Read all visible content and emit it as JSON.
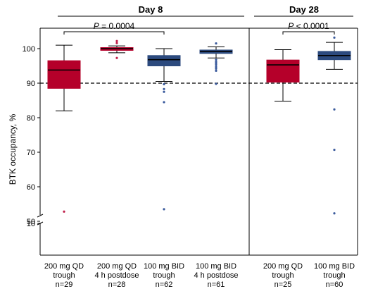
{
  "chart_data": {
    "type": "box",
    "ylabel": "BTK occupancy, %",
    "yticks": [
      10,
      50,
      60,
      70,
      80,
      90,
      100
    ],
    "reference_line": 90,
    "colors": {
      "qd": "#b5002a",
      "bid": "#2c4a7e",
      "outlier_qd": "#c0204a",
      "outlier_bid": "#3a5a9c"
    },
    "panels": [
      {
        "label": "Day 8",
        "comparison": {
          "prefix": "P",
          "text": " = 0.0004"
        }
      },
      {
        "label": "Day 28",
        "comparison": {
          "prefix": "P",
          "text": " < 0.0001"
        }
      }
    ],
    "groups": [
      {
        "line1": "200 mg QD",
        "line2": "trough",
        "line3": "n=29",
        "regimen": "qd",
        "whisker_low": 82,
        "q1": 88.5,
        "median": 93.8,
        "q3": 96.5,
        "whisker_high": 101,
        "outliers": [
          52.8
        ]
      },
      {
        "line1": "200 mg QD",
        "line2": "4 h postdose",
        "line3": "n=28",
        "regimen": "qd",
        "whisker_low": 98.8,
        "q1": 99.5,
        "median": 100,
        "q3": 100.3,
        "whisker_high": 100.8,
        "outliers": [
          97.3,
          101.6,
          102.2
        ]
      },
      {
        "line1": "100 mg BID",
        "line2": "trough",
        "line3": "n=62",
        "regimen": "bid",
        "whisker_low": 90.5,
        "q1": 95,
        "median": 96.8,
        "q3": 98,
        "whisker_high": 100,
        "outliers": [
          89.7,
          88.3,
          87.5,
          84.5,
          53.5
        ]
      },
      {
        "line1": "100 mg BID",
        "line2": "4 h postdose",
        "line3": "n=61",
        "regimen": "bid",
        "whisker_low": 97.3,
        "q1": 98.6,
        "median": 99.2,
        "q3": 99.6,
        "whisker_high": 100.5,
        "outliers": [
          101.5,
          96.8,
          96.2,
          95.8,
          95.3,
          94.7,
          94.2,
          93.6,
          89.8
        ]
      },
      {
        "line1": "200 mg QD",
        "line2": "trough",
        "line3": "n=25",
        "regimen": "qd",
        "whisker_low": 84.8,
        "q1": 90.3,
        "median": 95.3,
        "q3": 96.7,
        "whisker_high": 99.7,
        "outliers": []
      },
      {
        "line1": "100 mg BID",
        "line2": "trough",
        "line3": "n=60",
        "regimen": "bid",
        "whisker_low": 94,
        "q1": 96.8,
        "median": 98,
        "q3": 99.2,
        "whisker_high": 101.8,
        "outliers": [
          103.2,
          82.4,
          70.7,
          52.3
        ]
      }
    ]
  }
}
